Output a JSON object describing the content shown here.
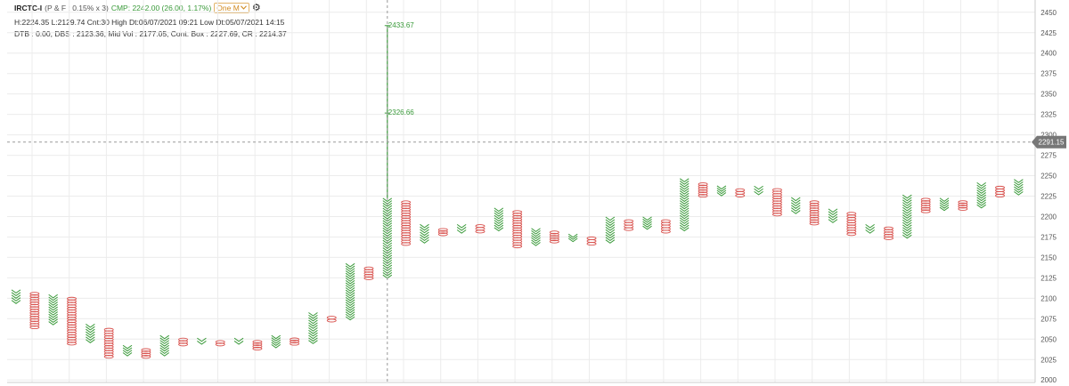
{
  "header": {
    "symbol": "IRCTC-I",
    "params": "(P & F : 0.15% x 3)",
    "cmp": "CMP: 2242.00 (26.00, 1.17%)",
    "timeframe": "One M",
    "stats_line": "H:2224.35 L:2129.74 Cnt:30 High Dt:06/07/2021 09:21 Low Dt:05/07/2021 14:15",
    "dtb_line": "DTB : 0.00, DBS : 2123.36, Mid Vol : 2177.05, Cont. Box : 2227.69, CR : 2214.37"
  },
  "icons": {
    "settings": "gear-icon",
    "dropdown": "chevron-down-icon"
  },
  "colors": {
    "x_column": "#3a9a3a",
    "o_column": "#d9534f",
    "grid": "#ececec",
    "crosshair": "#999999",
    "price_tag_bg": "#777777"
  },
  "crosshair": {
    "price_label": "2291.15",
    "price": 2291.15
  },
  "chart_data": {
    "type": "point-and-figure",
    "ylim": [
      1997,
      2465
    ],
    "yticks": [
      2000,
      2025,
      2050,
      2075,
      2100,
      2125,
      2150,
      2175,
      2200,
      2225,
      2250,
      2275,
      2300,
      2325,
      2350,
      2375,
      2400,
      2425,
      2450
    ],
    "grid": true,
    "legend": "none",
    "columns": [
      {
        "type": "X",
        "low": 2094,
        "high": 2110
      },
      {
        "type": "O",
        "low": 2063,
        "high": 2107
      },
      {
        "type": "X",
        "low": 2068,
        "high": 2104
      },
      {
        "type": "O",
        "low": 2043,
        "high": 2101
      },
      {
        "type": "X",
        "low": 2046,
        "high": 2068
      },
      {
        "type": "O",
        "low": 2027,
        "high": 2063
      },
      {
        "type": "X",
        "low": 2030,
        "high": 2042
      },
      {
        "type": "O",
        "low": 2027,
        "high": 2038
      },
      {
        "type": "X",
        "low": 2030,
        "high": 2054
      },
      {
        "type": "O",
        "low": 2042,
        "high": 2051
      },
      {
        "type": "X",
        "low": 2044,
        "high": 2051
      },
      {
        "type": "O",
        "low": 2042,
        "high": 2048
      },
      {
        "type": "X",
        "low": 2044,
        "high": 2051
      },
      {
        "type": "O",
        "low": 2037,
        "high": 2048
      },
      {
        "type": "X",
        "low": 2040,
        "high": 2054
      },
      {
        "type": "O",
        "low": 2043,
        "high": 2051
      },
      {
        "type": "X",
        "low": 2045,
        "high": 2082
      },
      {
        "type": "O",
        "low": 2071,
        "high": 2078
      },
      {
        "type": "X",
        "low": 2074,
        "high": 2142
      },
      {
        "type": "O",
        "low": 2123,
        "high": 2138
      },
      {
        "type": "X",
        "low": 2125,
        "high": 2222
      },
      {
        "type": "O",
        "low": 2165,
        "high": 2219
      },
      {
        "type": "X",
        "low": 2168,
        "high": 2190
      },
      {
        "type": "O",
        "low": 2177,
        "high": 2185
      },
      {
        "type": "X",
        "low": 2180,
        "high": 2190
      },
      {
        "type": "O",
        "low": 2180,
        "high": 2190
      },
      {
        "type": "X",
        "low": 2183,
        "high": 2210
      },
      {
        "type": "O",
        "low": 2162,
        "high": 2207
      },
      {
        "type": "X",
        "low": 2165,
        "high": 2185
      },
      {
        "type": "O",
        "low": 2168,
        "high": 2182
      },
      {
        "type": "X",
        "low": 2170,
        "high": 2178
      },
      {
        "type": "O",
        "low": 2165,
        "high": 2175
      },
      {
        "type": "X",
        "low": 2168,
        "high": 2199
      },
      {
        "type": "O",
        "low": 2183,
        "high": 2196
      },
      {
        "type": "X",
        "low": 2185,
        "high": 2199
      },
      {
        "type": "O",
        "low": 2180,
        "high": 2196
      },
      {
        "type": "X",
        "low": 2183,
        "high": 2246
      },
      {
        "type": "O",
        "low": 2224,
        "high": 2241
      },
      {
        "type": "X",
        "low": 2226,
        "high": 2237
      },
      {
        "type": "O",
        "low": 2224,
        "high": 2234
      },
      {
        "type": "X",
        "low": 2227,
        "high": 2237
      },
      {
        "type": "O",
        "low": 2201,
        "high": 2234
      },
      {
        "type": "X",
        "low": 2204,
        "high": 2223
      },
      {
        "type": "O",
        "low": 2190,
        "high": 2219
      },
      {
        "type": "X",
        "low": 2193,
        "high": 2209
      },
      {
        "type": "O",
        "low": 2177,
        "high": 2205
      },
      {
        "type": "X",
        "low": 2180,
        "high": 2190
      },
      {
        "type": "O",
        "low": 2172,
        "high": 2187
      },
      {
        "type": "X",
        "low": 2174,
        "high": 2226
      },
      {
        "type": "O",
        "low": 2205,
        "high": 2222
      },
      {
        "type": "X",
        "low": 2208,
        "high": 2222
      },
      {
        "type": "O",
        "low": 2208,
        "high": 2219
      },
      {
        "type": "X",
        "low": 2211,
        "high": 2241
      },
      {
        "type": "O",
        "low": 2224,
        "high": 2237
      },
      {
        "type": "X",
        "low": 2227,
        "high": 2245
      }
    ],
    "markers": [
      {
        "label": "2433.67",
        "value": 2433.67,
        "column": 20
      },
      {
        "label": "2326.66",
        "value": 2326.66,
        "column": 20
      }
    ]
  }
}
